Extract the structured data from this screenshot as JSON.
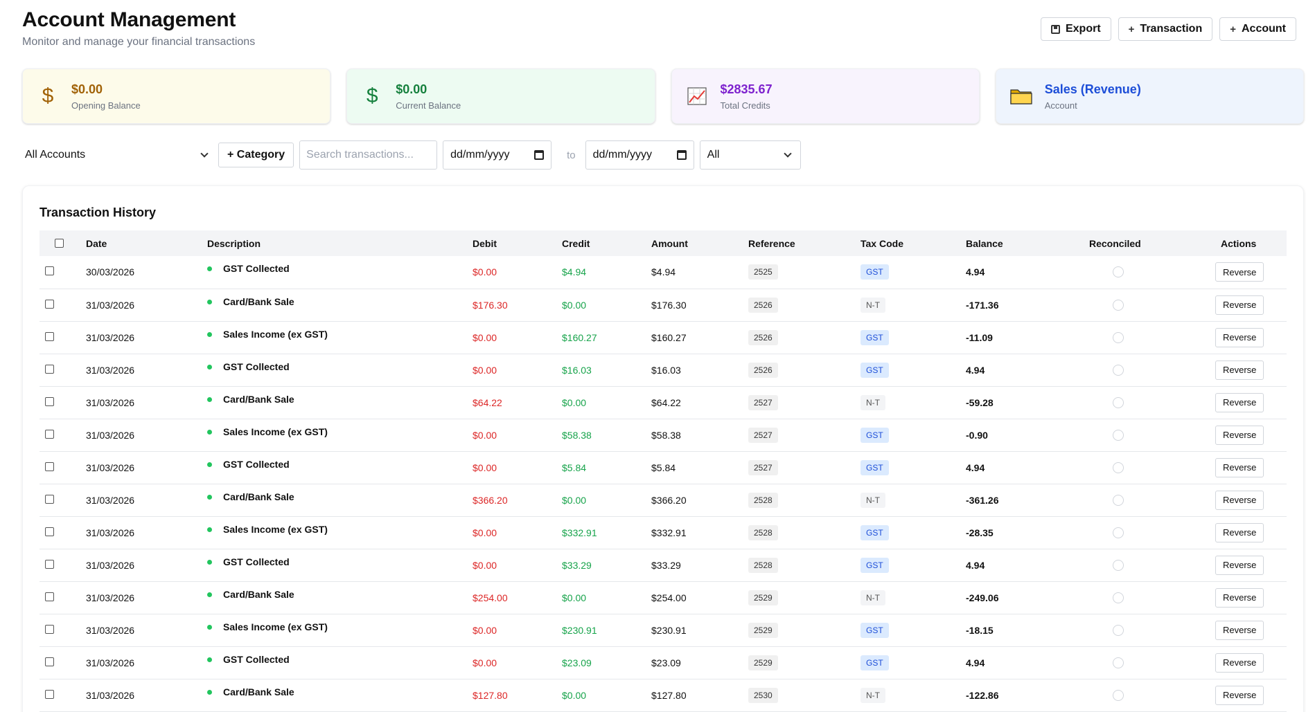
{
  "header": {
    "title": "Account Management",
    "subtitle": "Monitor and manage your financial transactions"
  },
  "toolbar": {
    "export_label": "Export",
    "transaction_label": "Transaction",
    "account_label": "Account",
    "plus_glyph": "+"
  },
  "cards": [
    {
      "value": "$0.00",
      "label": "Opening Balance",
      "icon": "dollar-icon",
      "glyph": "$"
    },
    {
      "value": "$0.00",
      "label": "Current Balance",
      "icon": "dollar-icon",
      "glyph": "$"
    },
    {
      "value": "$2835.67",
      "label": "Total Credits",
      "icon": "chart-increasing-icon"
    },
    {
      "value": "Sales (Revenue)",
      "label": "Account",
      "icon": "folder-icon"
    }
  ],
  "filters": {
    "account_select": "All Accounts",
    "category_button": "+ Category",
    "search_placeholder": "Search transactions...",
    "date_from": "dd/mm/yyyy",
    "to_label": "to",
    "date_to": "dd/mm/yyyy",
    "status_select": "All"
  },
  "table": {
    "title": "Transaction History",
    "columns": [
      "Date",
      "Description",
      "Debit",
      "Credit",
      "Amount",
      "Reference",
      "Tax Code",
      "Balance",
      "Reconciled",
      "Actions"
    ],
    "action_label": "Reverse",
    "rows": [
      {
        "date": "30/03/2026",
        "description": "GST Collected",
        "debit": "$0.00",
        "credit": "$4.94",
        "amount": "$4.94",
        "reference": "2525",
        "tax": "GST",
        "balance": "4.94"
      },
      {
        "date": "31/03/2026",
        "description": "Card/Bank Sale",
        "debit": "$176.30",
        "credit": "$0.00",
        "amount": "$176.30",
        "reference": "2526",
        "tax": "N-T",
        "balance": "-171.36"
      },
      {
        "date": "31/03/2026",
        "description": "Sales Income (ex GST)",
        "debit": "$0.00",
        "credit": "$160.27",
        "amount": "$160.27",
        "reference": "2526",
        "tax": "GST",
        "balance": "-11.09"
      },
      {
        "date": "31/03/2026",
        "description": "GST Collected",
        "debit": "$0.00",
        "credit": "$16.03",
        "amount": "$16.03",
        "reference": "2526",
        "tax": "GST",
        "balance": "4.94"
      },
      {
        "date": "31/03/2026",
        "description": "Card/Bank Sale",
        "debit": "$64.22",
        "credit": "$0.00",
        "amount": "$64.22",
        "reference": "2527",
        "tax": "N-T",
        "balance": "-59.28"
      },
      {
        "date": "31/03/2026",
        "description": "Sales Income (ex GST)",
        "debit": "$0.00",
        "credit": "$58.38",
        "amount": "$58.38",
        "reference": "2527",
        "tax": "GST",
        "balance": "-0.90"
      },
      {
        "date": "31/03/2026",
        "description": "GST Collected",
        "debit": "$0.00",
        "credit": "$5.84",
        "amount": "$5.84",
        "reference": "2527",
        "tax": "GST",
        "balance": "4.94"
      },
      {
        "date": "31/03/2026",
        "description": "Card/Bank Sale",
        "debit": "$366.20",
        "credit": "$0.00",
        "amount": "$366.20",
        "reference": "2528",
        "tax": "N-T",
        "balance": "-361.26"
      },
      {
        "date": "31/03/2026",
        "description": "Sales Income (ex GST)",
        "debit": "$0.00",
        "credit": "$332.91",
        "amount": "$332.91",
        "reference": "2528",
        "tax": "GST",
        "balance": "-28.35"
      },
      {
        "date": "31/03/2026",
        "description": "GST Collected",
        "debit": "$0.00",
        "credit": "$33.29",
        "amount": "$33.29",
        "reference": "2528",
        "tax": "GST",
        "balance": "4.94"
      },
      {
        "date": "31/03/2026",
        "description": "Card/Bank Sale",
        "debit": "$254.00",
        "credit": "$0.00",
        "amount": "$254.00",
        "reference": "2529",
        "tax": "N-T",
        "balance": "-249.06"
      },
      {
        "date": "31/03/2026",
        "description": "Sales Income (ex GST)",
        "debit": "$0.00",
        "credit": "$230.91",
        "amount": "$230.91",
        "reference": "2529",
        "tax": "GST",
        "balance": "-18.15"
      },
      {
        "date": "31/03/2026",
        "description": "GST Collected",
        "debit": "$0.00",
        "credit": "$23.09",
        "amount": "$23.09",
        "reference": "2529",
        "tax": "GST",
        "balance": "4.94"
      },
      {
        "date": "31/03/2026",
        "description": "Card/Bank Sale",
        "debit": "$127.80",
        "credit": "$0.00",
        "amount": "$127.80",
        "reference": "2530",
        "tax": "N-T",
        "balance": "-122.86"
      }
    ]
  },
  "colors": {
    "debit": "#dc2626",
    "credit": "#16a34a",
    "opening_accent": "#a16207",
    "current_accent": "#15803d",
    "credits_accent": "#7e22ce",
    "account_accent": "#1d4ed8"
  }
}
